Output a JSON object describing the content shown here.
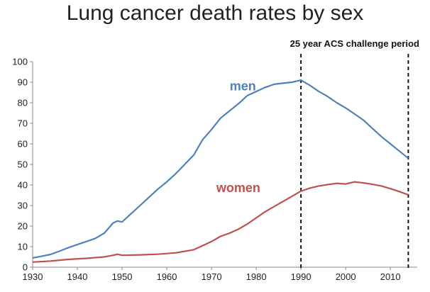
{
  "chart_data": {
    "type": "line",
    "title": "Lung cancer death rates by sex",
    "xlabel": "",
    "ylabel": "",
    "xlim": [
      1930,
      2016
    ],
    "ylim": [
      0,
      100
    ],
    "x_ticks": [
      1930,
      1940,
      1950,
      1960,
      1970,
      1980,
      1990,
      2000,
      2010
    ],
    "y_ticks": [
      0,
      10,
      20,
      30,
      40,
      50,
      60,
      70,
      80,
      90,
      100
    ],
    "grid": false,
    "annotations": [
      {
        "text": "25 year ACS challenge period",
        "x_start": 1990,
        "x_end": 2014
      }
    ],
    "series": [
      {
        "name": "men",
        "color": "#4f81bd",
        "points": [
          [
            1930,
            4.5
          ],
          [
            1932,
            5.3
          ],
          [
            1934,
            6.2
          ],
          [
            1936,
            7.8
          ],
          [
            1938,
            9.5
          ],
          [
            1940,
            11.0
          ],
          [
            1942,
            12.5
          ],
          [
            1944,
            14.0
          ],
          [
            1946,
            16.5
          ],
          [
            1948,
            21.5
          ],
          [
            1949,
            22.5
          ],
          [
            1950,
            22.0
          ],
          [
            1952,
            26.0
          ],
          [
            1954,
            30.0
          ],
          [
            1956,
            34.0
          ],
          [
            1958,
            38.0
          ],
          [
            1960,
            41.5
          ],
          [
            1962,
            45.5
          ],
          [
            1964,
            50.0
          ],
          [
            1966,
            54.5
          ],
          [
            1968,
            62.0
          ],
          [
            1970,
            67.0
          ],
          [
            1972,
            72.5
          ],
          [
            1974,
            76.0
          ],
          [
            1976,
            79.5
          ],
          [
            1978,
            83.5
          ],
          [
            1980,
            85.5
          ],
          [
            1982,
            87.5
          ],
          [
            1984,
            89.0
          ],
          [
            1986,
            89.5
          ],
          [
            1988,
            90.0
          ],
          [
            1990,
            91.0
          ],
          [
            1992,
            88.5
          ],
          [
            1994,
            85.5
          ],
          [
            1996,
            83.0
          ],
          [
            1998,
            80.0
          ],
          [
            2000,
            77.5
          ],
          [
            2002,
            74.5
          ],
          [
            2004,
            71.5
          ],
          [
            2006,
            67.5
          ],
          [
            2008,
            63.5
          ],
          [
            2010,
            60.0
          ],
          [
            2012,
            56.5
          ],
          [
            2014,
            53.0
          ]
        ]
      },
      {
        "name": "women",
        "color": "#c0504d",
        "points": [
          [
            1930,
            2.5
          ],
          [
            1934,
            3.0
          ],
          [
            1938,
            3.8
          ],
          [
            1942,
            4.3
          ],
          [
            1946,
            5.0
          ],
          [
            1948,
            5.8
          ],
          [
            1949,
            6.3
          ],
          [
            1950,
            5.8
          ],
          [
            1954,
            6.0
          ],
          [
            1958,
            6.3
          ],
          [
            1962,
            7.0
          ],
          [
            1966,
            8.5
          ],
          [
            1968,
            10.5
          ],
          [
            1970,
            12.5
          ],
          [
            1972,
            15.0
          ],
          [
            1974,
            16.5
          ],
          [
            1976,
            18.5
          ],
          [
            1978,
            21.0
          ],
          [
            1980,
            24.0
          ],
          [
            1982,
            27.0
          ],
          [
            1984,
            29.5
          ],
          [
            1986,
            32.0
          ],
          [
            1988,
            34.5
          ],
          [
            1990,
            37.0
          ],
          [
            1992,
            38.5
          ],
          [
            1994,
            39.5
          ],
          [
            1996,
            40.2
          ],
          [
            1998,
            40.8
          ],
          [
            2000,
            40.5
          ],
          [
            2002,
            41.5
          ],
          [
            2004,
            41.0
          ],
          [
            2006,
            40.3
          ],
          [
            2008,
            39.5
          ],
          [
            2010,
            38.2
          ],
          [
            2012,
            36.8
          ],
          [
            2014,
            35.2
          ]
        ]
      }
    ]
  }
}
